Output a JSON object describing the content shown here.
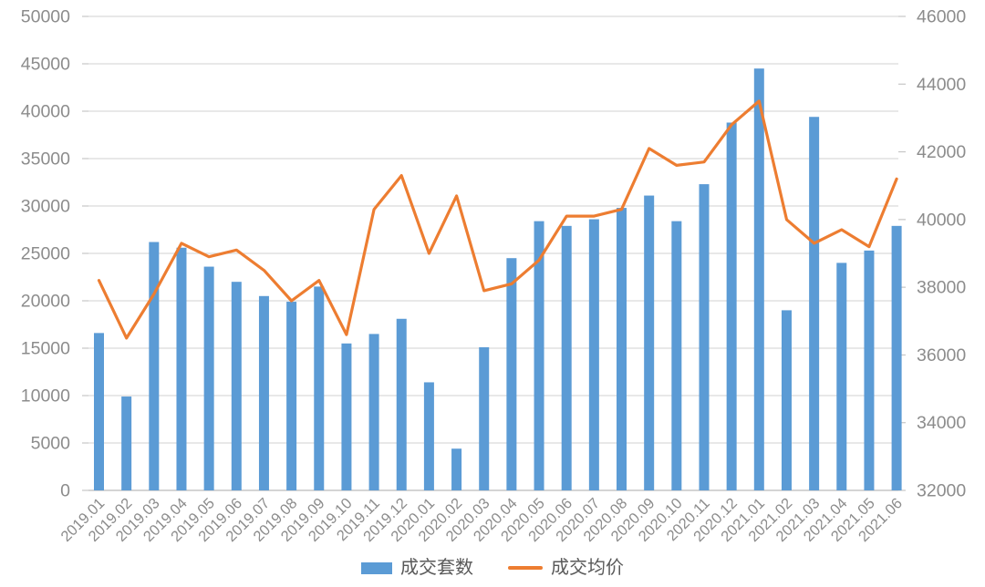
{
  "chart_data": {
    "type": "bar",
    "title": "",
    "xlabel": "",
    "ylabel_left": "",
    "ylabel_right": "",
    "grid": "horizontal-only",
    "legend_position": "bottom-center",
    "categories": [
      "2019.01",
      "2019.02",
      "2019.03",
      "2019.04",
      "2019.05",
      "2019.06",
      "2019.07",
      "2019.08",
      "2019.09",
      "2019.10",
      "2019.11",
      "2019.12",
      "2020.01",
      "2020.02",
      "2020.03",
      "2020.04",
      "2020.05",
      "2020.06",
      "2020.07",
      "2020.08",
      "2020.09",
      "2020.10",
      "2020.11",
      "2020.12",
      "2021.01",
      "2021.02",
      "2021.03",
      "2021.04",
      "2021.05",
      "2021.06"
    ],
    "series": [
      {
        "name": "成交套数",
        "kind": "bar",
        "axis": "left",
        "color": "#5B9BD5",
        "values": [
          16600,
          9900,
          26200,
          25600,
          23600,
          22000,
          20500,
          19900,
          21500,
          15500,
          16500,
          18100,
          11400,
          4400,
          15100,
          24500,
          28400,
          27900,
          28600,
          29800,
          31100,
          28400,
          32300,
          38800,
          44500,
          19000,
          39400,
          24000,
          25300,
          27900
        ]
      },
      {
        "name": "成交均价",
        "kind": "line",
        "axis": "right",
        "color": "#ED7D31",
        "values": [
          38200,
          36500,
          37800,
          39300,
          38900,
          39100,
          38500,
          37600,
          38200,
          36600,
          40300,
          41300,
          39000,
          40700,
          37900,
          38100,
          38800,
          40100,
          40100,
          40300,
          42100,
          41600,
          41700,
          42800,
          43500,
          40000,
          39300,
          39700,
          39200,
          41200
        ]
      }
    ],
    "left_axis": {
      "min": 0,
      "max": 50000,
      "step": 5000,
      "tick_labels": [
        "0",
        "5000",
        "10000",
        "15000",
        "20000",
        "25000",
        "30000",
        "35000",
        "40000",
        "45000",
        "50000"
      ]
    },
    "right_axis": {
      "min": 32000,
      "max": 46000,
      "step": 2000,
      "tick_labels": [
        "32000",
        "34000",
        "36000",
        "38000",
        "40000",
        "42000",
        "44000",
        "46000"
      ]
    }
  },
  "legend": {
    "items": [
      {
        "label": "成交套数",
        "swatch": "bar",
        "color": "#5B9BD5"
      },
      {
        "label": "成交均价",
        "swatch": "line",
        "color": "#ED7D31"
      }
    ]
  },
  "styles": {
    "background": "#FFFFFF",
    "grid_color": "#D9D9D9",
    "axis_line_color": "#C6C6C6",
    "tick_color": "#C6C6C6",
    "axis_text_color": "#8C8C8C",
    "legend_text_color": "#595959"
  }
}
